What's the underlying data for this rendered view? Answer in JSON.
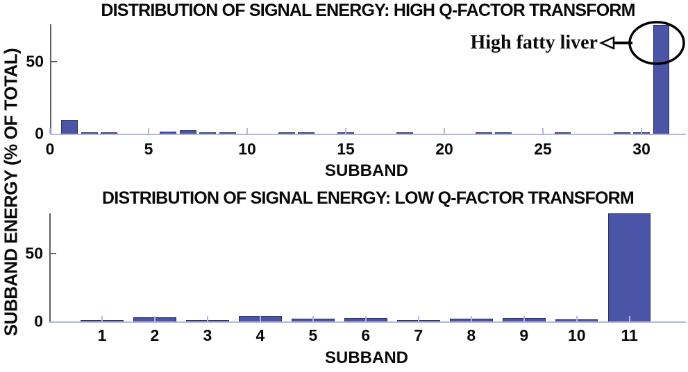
{
  "figure": {
    "ylabel": "SUBBAND ENERGY (% OF TOTAL)"
  },
  "annotation": {
    "label": "High fatty liver",
    "target": "tallest bar, subband 31 of high Q-factor transform"
  },
  "colors": {
    "bar_fill": "#4a55a8",
    "bar_edge": "#2b3052",
    "axis_line": "#b3b7e6",
    "spine": "#5f5f5f",
    "annotation": "#000000"
  },
  "chart_data": [
    {
      "type": "bar",
      "title": "DISTRIBUTION OF SIGNAL ENERGY: HIGH Q-FACTOR TRANSFORM",
      "xlabel": "SUBBAND",
      "ylabel": "SUBBAND ENERGY (% OF TOTAL)",
      "x": [
        1,
        2,
        3,
        4,
        5,
        6,
        7,
        8,
        9,
        10,
        11,
        12,
        13,
        14,
        15,
        16,
        17,
        18,
        19,
        20,
        21,
        22,
        23,
        24,
        25,
        26,
        27,
        28,
        29,
        30,
        31
      ],
      "values": [
        9.5,
        0.9,
        0.8,
        0.2,
        0.1,
        1.4,
        2.3,
        1.2,
        0.9,
        0.2,
        0.1,
        0.4,
        0.5,
        0.1,
        0.4,
        0.1,
        0.1,
        1.0,
        0.1,
        0.1,
        0.1,
        0.5,
        0.5,
        0.1,
        0.1,
        0.5,
        0.1,
        0.1,
        0.6,
        1.1,
        75.5
      ],
      "xticks": [
        0,
        5,
        10,
        15,
        20,
        25,
        30
      ],
      "yticks": [
        0,
        50
      ],
      "xlim": [
        0,
        32.25
      ],
      "ylim": [
        0,
        76
      ],
      "grid": false,
      "legend": null
    },
    {
      "type": "bar",
      "title": "DISTRIBUTION OF SIGNAL ENERGY: LOW Q-FACTOR TRANSFORM",
      "xlabel": "SUBBAND",
      "ylabel": "SUBBAND ENERGY (% OF TOTAL)",
      "x": [
        1,
        2,
        3,
        4,
        5,
        6,
        7,
        8,
        9,
        10,
        11
      ],
      "values": [
        0.7,
        3.0,
        1.0,
        3.9,
        2.0,
        2.5,
        0.6,
        1.8,
        2.6,
        1.6,
        79.5
      ],
      "xticks": [
        1,
        2,
        3,
        4,
        5,
        6,
        7,
        8,
        9,
        10,
        11
      ],
      "yticks": [
        0,
        50
      ],
      "xlim": [
        0,
        12.07
      ],
      "ylim": [
        0,
        79.5
      ],
      "grid": false,
      "legend": null
    }
  ]
}
